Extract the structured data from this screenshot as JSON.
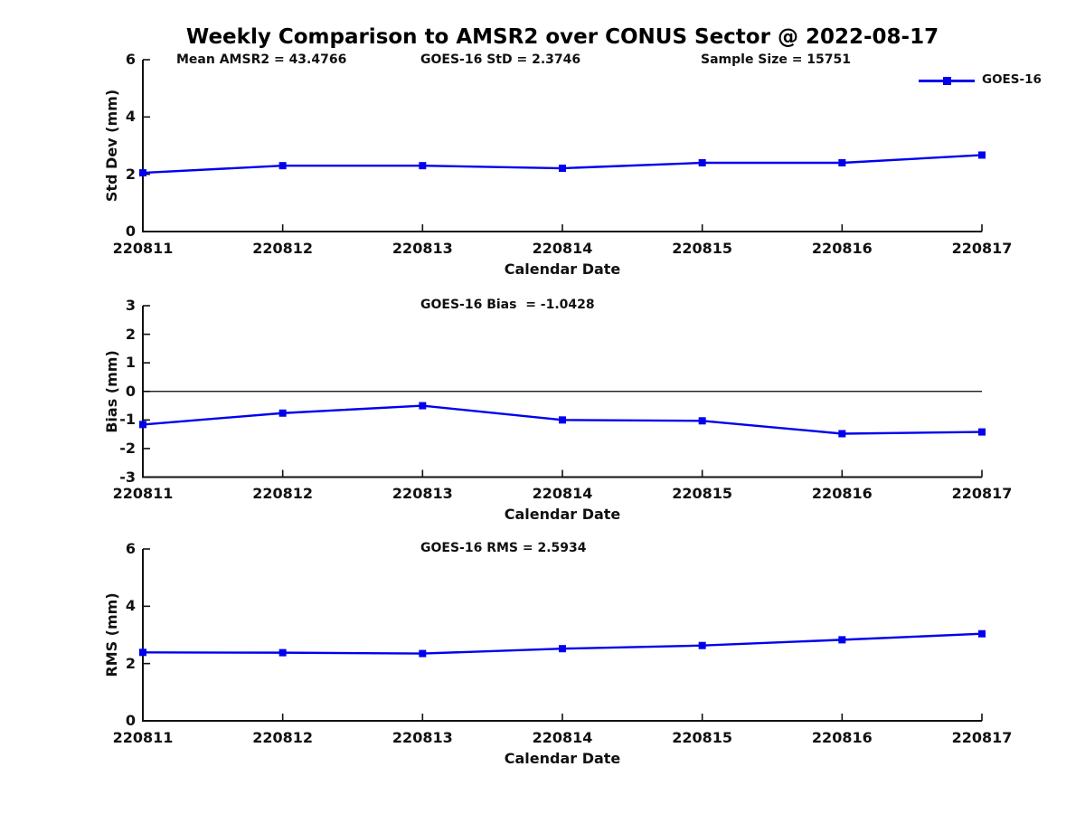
{
  "title": "Weekly Comparison to AMSR2 over CONUS Sector @ 2022-08-17",
  "chart_data": {
    "type": "line",
    "categories": [
      "220811",
      "220812",
      "220813",
      "220814",
      "220815",
      "220816",
      "220817"
    ],
    "legend": [
      "GOES-16"
    ],
    "series_color": "#0000EE",
    "grid": false,
    "legend_position": "top-right",
    "panels": [
      {
        "name": "std_dev",
        "ylabel": "Std Dev (mm)",
        "xlabel": "Calendar Date",
        "ylim": [
          0,
          6
        ],
        "yticks": [
          0,
          2,
          4,
          6
        ],
        "annotations": [
          "Mean AMSR2 = 43.4766",
          "GOES-16 StD = 2.3746",
          "Sample Size = 15751"
        ],
        "series": [
          {
            "name": "GOES-16",
            "values": [
              2.05,
              2.3,
              2.3,
              2.21,
              2.4,
              2.4,
              2.67
            ]
          }
        ]
      },
      {
        "name": "bias",
        "ylabel": "Bias (mm)",
        "xlabel": "Calendar Date",
        "ylim": [
          -3,
          3
        ],
        "yticks": [
          -3,
          -2,
          -1,
          0,
          1,
          2,
          3
        ],
        "zero_line": true,
        "annotations": [
          "GOES-16 Bias  = -1.0428"
        ],
        "series": [
          {
            "name": "GOES-16",
            "values": [
              -1.16,
              -0.76,
              -0.5,
              -1.0,
              -1.03,
              -1.48,
              -1.42
            ]
          }
        ]
      },
      {
        "name": "rms",
        "ylabel": "RMS (mm)",
        "xlabel": "Calendar Date",
        "ylim": [
          0,
          6
        ],
        "yticks": [
          0,
          2,
          4,
          6
        ],
        "annotations": [
          "GOES-16 RMS = 2.5934"
        ],
        "series": [
          {
            "name": "GOES-16",
            "values": [
              2.39,
              2.38,
              2.35,
              2.52,
              2.63,
              2.83,
              3.04
            ]
          }
        ]
      }
    ]
  }
}
